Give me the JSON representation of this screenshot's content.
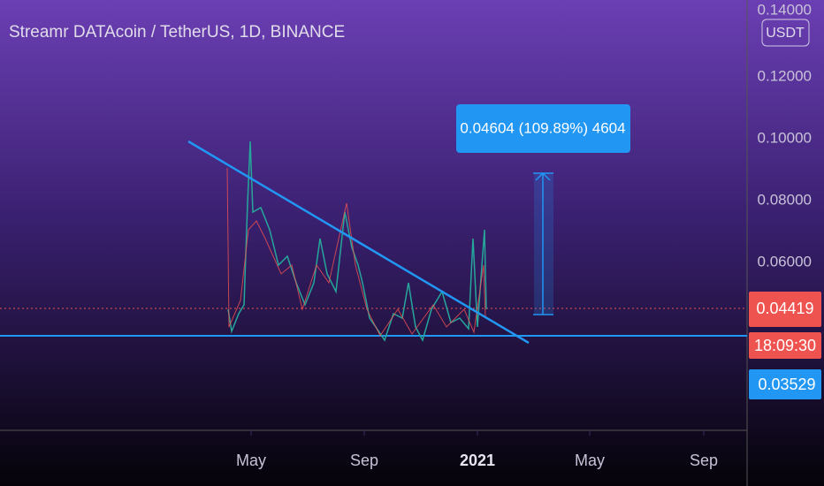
{
  "header": {
    "title": "Streamr DATAcoin / TetherUS, 1D, BINANCE",
    "currency": "USDT"
  },
  "price_axis": {
    "ticks": [
      "0.14000",
      "0.12000",
      "0.10000",
      "0.08000",
      "0.06000"
    ]
  },
  "time_axis": {
    "labels": [
      "May",
      "Sep",
      "2021",
      "May",
      "Sep"
    ]
  },
  "price_labels": {
    "last_price": "0.04419",
    "countdown": "18:09:30",
    "line_price": "0.03529"
  },
  "measurement": {
    "label": "0.04604 (109.89%) 4604"
  }
}
